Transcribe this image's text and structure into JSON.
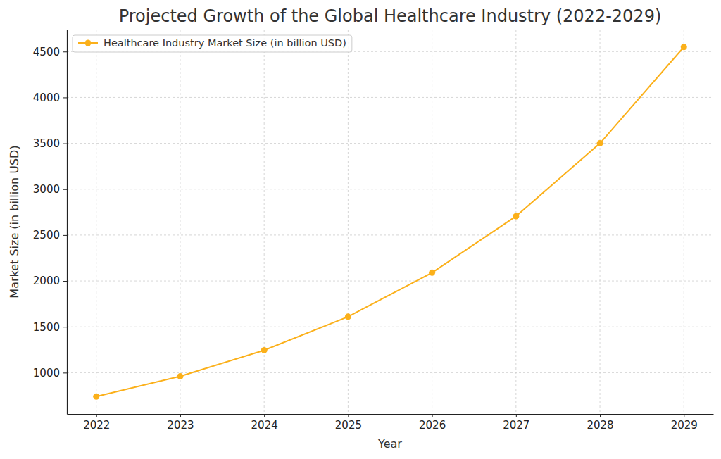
{
  "chart_data": {
    "type": "line",
    "title": "Projected Growth of the Global Healthcare Industry (2022-2029)",
    "x_label": "Year",
    "y_label": "Market Size (in billion USD)",
    "x": [
      2022,
      2023,
      2024,
      2025,
      2026,
      2027,
      2028,
      2029
    ],
    "series": [
      {
        "name": "Healthcare Industry Market Size (in billion USD)",
        "color": "#fbb01a",
        "values": [
          740,
          960,
          1245,
          1610,
          2090,
          2705,
          3500,
          4550
        ],
        "marker": "circle",
        "line_style": "solid"
      }
    ],
    "xlim": [
      2021.65,
      2029.35
    ],
    "xticks": [
      2022,
      2023,
      2024,
      2025,
      2026,
      2027,
      2028,
      2029
    ],
    "ylim": [
      550,
      4740
    ],
    "yticks": [
      1000,
      1500,
      2000,
      2500,
      3000,
      3500,
      4000,
      4500
    ],
    "grid": true,
    "legend": "upper left"
  }
}
